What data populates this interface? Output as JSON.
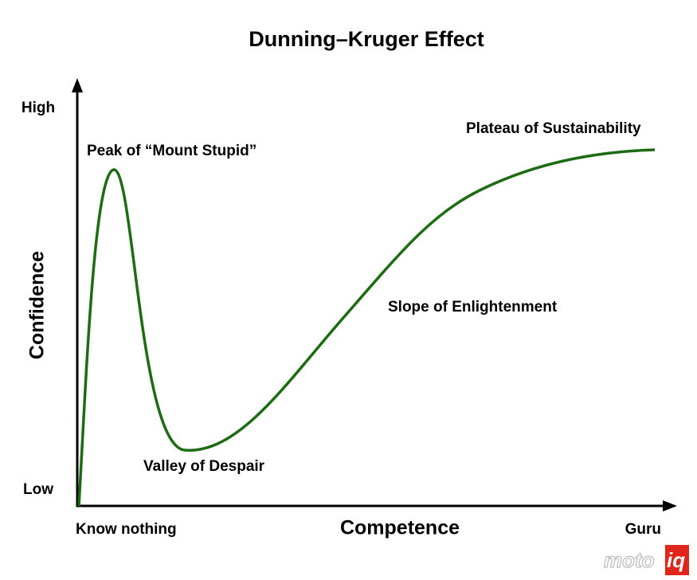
{
  "title": "Dunning–Kruger Effect",
  "y_axis": {
    "label": "Confidence",
    "high": "High",
    "low": "Low"
  },
  "x_axis": {
    "label": "Competence",
    "start": "Know nothing",
    "end": "Guru"
  },
  "annotations": {
    "peak": "Peak of “Mount Stupid”",
    "valley": "Valley of Despair",
    "slope": "Slope of Enlightenment",
    "plateau": "Plateau of Sustainability"
  },
  "watermark": {
    "left": "moto",
    "right": "iq"
  }
}
